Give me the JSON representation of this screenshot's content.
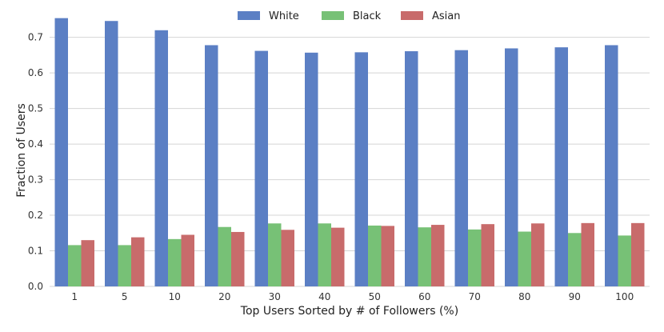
{
  "chart_data": {
    "type": "bar",
    "title": "",
    "xlabel": "Top Users Sorted by # of Followers (%)",
    "ylabel": "Fraction of Users",
    "ylim": [
      0,
      0.76
    ],
    "yticks": [
      "0.0",
      "0.1",
      "0.2",
      "0.3",
      "0.4",
      "0.5",
      "0.6",
      "0.7"
    ],
    "grid": true,
    "legend_position": "top-center",
    "categories": [
      "1",
      "5",
      "10",
      "20",
      "30",
      "40",
      "50",
      "60",
      "70",
      "80",
      "90",
      "100"
    ],
    "series": [
      {
        "name": "White",
        "color": "#5b7fc4",
        "values": [
          0.754,
          0.746,
          0.72,
          0.678,
          0.662,
          0.657,
          0.658,
          0.661,
          0.664,
          0.669,
          0.672,
          0.678
        ]
      },
      {
        "name": "Black",
        "color": "#77c176",
        "values": [
          0.116,
          0.116,
          0.133,
          0.167,
          0.177,
          0.177,
          0.171,
          0.166,
          0.16,
          0.154,
          0.15,
          0.143
        ]
      },
      {
        "name": "Asian",
        "color": "#c86b6b",
        "values": [
          0.13,
          0.138,
          0.145,
          0.153,
          0.159,
          0.165,
          0.17,
          0.173,
          0.175,
          0.177,
          0.178,
          0.178
        ]
      }
    ]
  }
}
